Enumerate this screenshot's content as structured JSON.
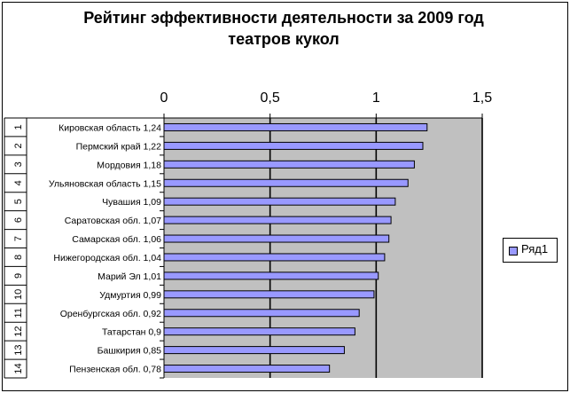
{
  "chart_data": {
    "type": "bar",
    "orientation": "horizontal",
    "title_lines": [
      "Рейтинг эффективности деятельности за 2009 год",
      "театров кукол"
    ],
    "categories": [
      "1",
      "2",
      "3",
      "4",
      "5",
      "6",
      "7",
      "8",
      "9",
      "10",
      "11",
      "12",
      "13",
      "14"
    ],
    "labels": [
      "Кировская область 1,24",
      "Пермский край 1,22",
      "Мордовия 1,18",
      "Ульяновская область 1,15",
      "Чувашия 1,09",
      "Саратовская обл. 1,07",
      "Самарская обл. 1,06",
      "Нижегородская обл. 1,04",
      "Марий Эл 1,01",
      "Удмуртия 0,99",
      "Оренбургская обл. 0,92",
      "Татарстан 0,9",
      "Башкирия 0,85",
      "Пензенская обл. 0,78"
    ],
    "series": [
      {
        "name": "Ряд1",
        "values": [
          1.24,
          1.22,
          1.18,
          1.15,
          1.09,
          1.07,
          1.06,
          1.04,
          1.01,
          0.99,
          0.92,
          0.9,
          0.85,
          0.78
        ]
      }
    ],
    "xlim": [
      0,
      1.5
    ],
    "x_ticks": [
      0,
      0.5,
      1,
      1.5
    ],
    "x_tick_labels": [
      "0",
      "0,5",
      "1",
      "1,5"
    ],
    "axis_position": "top",
    "grid": true,
    "legend": "right",
    "colors": {
      "bar": "#9999ff",
      "plot_background": "#c0c0c0",
      "bar_border": "#000000"
    }
  }
}
